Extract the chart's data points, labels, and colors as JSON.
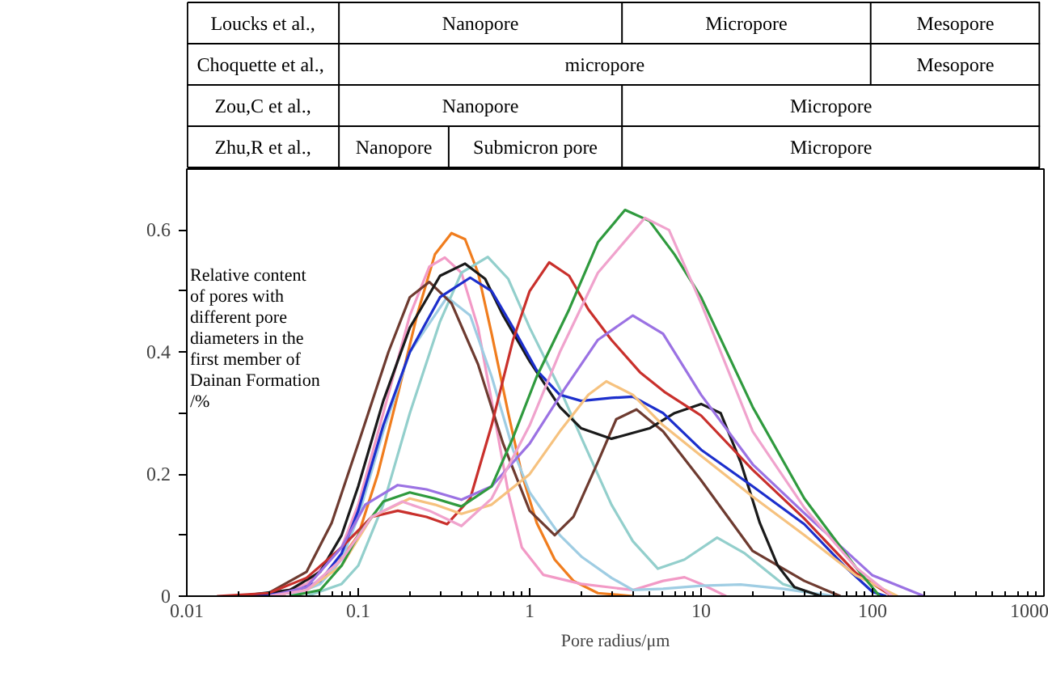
{
  "chart_data": [
    {
      "type": "other",
      "annotations": [
        "Loucks et al.,",
        "Nanopore",
        "Micropore",
        "Mesopore",
        "Choquette  et al.,",
        "micropore",
        "Mesopore",
        "Zou,C et al.,",
        "Nanopore",
        "Micropore",
        "Zhu,R et al.,",
        "Nanopore",
        "Submicron pore",
        "Micropore"
      ]
    },
    {
      "type": "line",
      "xlabel": "Pore radius/μm",
      "ylabel": "Relative content of pores with different pore diameters in the first member of Dainan Formation /%",
      "log": "x",
      "xlim": [
        0.01,
        1000
      ],
      "xticks": [
        0.01,
        0.1,
        1,
        10,
        100,
        1000
      ],
      "ylim": [
        0,
        0.7
      ],
      "yticks": [
        0,
        {
          "value": 0.1,
          "label": null
        },
        0.2,
        {
          "value": 0.3,
          "label": null
        },
        0.4,
        {
          "value": 0.5,
          "label": null
        },
        0.6
      ],
      "series": [
        {
          "color": "#f07d1e",
          "x": [
            0.03,
            0.05,
            0.07,
            0.1,
            0.13,
            0.17,
            0.22,
            0.28,
            0.35,
            0.42,
            0.5,
            0.6,
            0.75,
            0.9,
            1.1,
            1.4,
            1.8,
            2.5,
            4
          ],
          "values": [
            0,
            0.01,
            0.04,
            0.1,
            0.2,
            0.33,
            0.46,
            0.56,
            0.595,
            0.585,
            0.53,
            0.43,
            0.3,
            0.2,
            0.12,
            0.06,
            0.025,
            0.005,
            0
          ]
        },
        {
          "color": "#f29ac6",
          "x": [
            0.03,
            0.05,
            0.08,
            0.1,
            0.14,
            0.2,
            0.26,
            0.32,
            0.4,
            0.5,
            0.6,
            0.75,
            0.9,
            1.2,
            2,
            4,
            6,
            8,
            10,
            14
          ],
          "values": [
            0,
            0.02,
            0.08,
            0.15,
            0.3,
            0.46,
            0.54,
            0.555,
            0.53,
            0.44,
            0.32,
            0.17,
            0.08,
            0.035,
            0.02,
            0.01,
            0.025,
            0.031,
            0.02,
            0
          ]
        },
        {
          "color": "#9fcde3",
          "x": [
            0.04,
            0.06,
            0.08,
            0.1,
            0.14,
            0.2,
            0.33,
            0.45,
            0.6,
            0.8,
            1,
            1.5,
            2,
            3,
            4,
            6,
            10,
            17,
            30,
            60
          ],
          "values": [
            0,
            0.02,
            0.06,
            0.13,
            0.27,
            0.4,
            0.49,
            0.46,
            0.36,
            0.24,
            0.17,
            0.1,
            0.065,
            0.03,
            0.01,
            0.012,
            0.017,
            0.019,
            0.012,
            0
          ]
        },
        {
          "color": "#93cfcc",
          "x": [
            0.05,
            0.08,
            0.1,
            0.14,
            0.2,
            0.3,
            0.4,
            0.57,
            0.75,
            1,
            1.5,
            2,
            3,
            4,
            5.6,
            8,
            12.4,
            18,
            30,
            50
          ],
          "values": [
            0,
            0.02,
            0.05,
            0.15,
            0.3,
            0.45,
            0.53,
            0.556,
            0.52,
            0.44,
            0.34,
            0.26,
            0.15,
            0.09,
            0.045,
            0.06,
            0.096,
            0.07,
            0.02,
            0
          ]
        },
        {
          "color": "#6e3b30",
          "x": [
            0.02,
            0.03,
            0.05,
            0.07,
            0.1,
            0.15,
            0.2,
            0.26,
            0.35,
            0.5,
            0.7,
            1,
            1.4,
            1.8,
            2.5,
            3.2,
            4.2,
            6,
            10,
            20,
            40,
            65
          ],
          "values": [
            0,
            0.005,
            0.04,
            0.12,
            0.25,
            0.4,
            0.49,
            0.515,
            0.48,
            0.38,
            0.25,
            0.14,
            0.1,
            0.13,
            0.22,
            0.29,
            0.306,
            0.27,
            0.19,
            0.074,
            0.025,
            0
          ]
        },
        {
          "color": "#1a1a1a",
          "x": [
            0.02,
            0.04,
            0.06,
            0.08,
            0.1,
            0.14,
            0.2,
            0.3,
            0.42,
            0.55,
            0.7,
            1,
            1.5,
            2,
            3,
            5,
            7,
            10,
            13,
            17,
            22,
            28,
            35,
            50
          ],
          "values": [
            0,
            0.01,
            0.04,
            0.1,
            0.18,
            0.32,
            0.44,
            0.525,
            0.545,
            0.52,
            0.46,
            0.385,
            0.31,
            0.275,
            0.258,
            0.275,
            0.3,
            0.315,
            0.3,
            0.22,
            0.12,
            0.05,
            0.015,
            0
          ]
        },
        {
          "color": "#1c2fcc",
          "x": [
            0.02,
            0.04,
            0.06,
            0.08,
            0.1,
            0.14,
            0.2,
            0.3,
            0.45,
            0.6,
            0.8,
            1.1,
            1.5,
            2,
            3,
            4,
            6,
            10,
            20,
            40,
            70,
            100,
            120
          ],
          "values": [
            0,
            0.005,
            0.025,
            0.07,
            0.14,
            0.28,
            0.4,
            0.49,
            0.522,
            0.5,
            0.44,
            0.37,
            0.33,
            0.32,
            0.325,
            0.327,
            0.3,
            0.24,
            0.18,
            0.118,
            0.047,
            0.007,
            0
          ]
        },
        {
          "color": "#c9302c",
          "x": [
            0.015,
            0.03,
            0.05,
            0.08,
            0.12,
            0.17,
            0.25,
            0.33,
            0.45,
            0.6,
            0.8,
            1,
            1.3,
            1.7,
            2.2,
            3,
            4.4,
            6.1,
            10,
            20,
            40,
            80,
            130
          ],
          "values": [
            0,
            0.005,
            0.03,
            0.08,
            0.13,
            0.14,
            0.13,
            0.118,
            0.16,
            0.28,
            0.42,
            0.5,
            0.547,
            0.525,
            0.47,
            0.42,
            0.367,
            0.335,
            0.296,
            0.207,
            0.127,
            0.038,
            0
          ]
        },
        {
          "color": "#f6c27f",
          "x": [
            0.03,
            0.05,
            0.08,
            0.12,
            0.2,
            0.28,
            0.4,
            0.6,
            1,
            1.5,
            2.2,
            2.8,
            4,
            6,
            10,
            20,
            40,
            80,
            140
          ],
          "values": [
            0,
            0.01,
            0.05,
            0.13,
            0.16,
            0.15,
            0.135,
            0.15,
            0.2,
            0.27,
            0.33,
            0.352,
            0.33,
            0.28,
            0.23,
            0.163,
            0.1,
            0.034,
            0
          ]
        },
        {
          "color": "#9b72e3",
          "x": [
            0.03,
            0.05,
            0.08,
            0.11,
            0.17,
            0.25,
            0.4,
            0.6,
            1,
            1.6,
            2.5,
            4,
            6,
            10,
            20,
            40,
            100,
            200
          ],
          "values": [
            0,
            0.015,
            0.08,
            0.15,
            0.182,
            0.175,
            0.158,
            0.18,
            0.25,
            0.34,
            0.42,
            0.46,
            0.43,
            0.33,
            0.216,
            0.136,
            0.034,
            0
          ]
        },
        {
          "color": "#2f9a3e",
          "x": [
            0.04,
            0.06,
            0.08,
            0.1,
            0.14,
            0.2,
            0.28,
            0.4,
            0.6,
            0.8,
            1.1,
            1.7,
            2.5,
            3.6,
            5,
            7,
            10,
            20,
            40,
            80,
            110
          ],
          "values": [
            0,
            0.01,
            0.05,
            0.1,
            0.155,
            0.17,
            0.16,
            0.147,
            0.18,
            0.26,
            0.36,
            0.47,
            0.58,
            0.633,
            0.615,
            0.56,
            0.49,
            0.31,
            0.16,
            0.047,
            0
          ]
        },
        {
          "color": "#f0a3cd",
          "x": [
            0.03,
            0.05,
            0.08,
            0.12,
            0.18,
            0.26,
            0.4,
            0.6,
            1,
            1.5,
            2.5,
            4.7,
            6.5,
            10,
            20,
            40,
            80,
            130
          ],
          "values": [
            0,
            0.01,
            0.06,
            0.13,
            0.155,
            0.14,
            0.115,
            0.16,
            0.28,
            0.4,
            0.53,
            0.62,
            0.6,
            0.48,
            0.27,
            0.145,
            0.047,
            0
          ]
        }
      ]
    }
  ]
}
